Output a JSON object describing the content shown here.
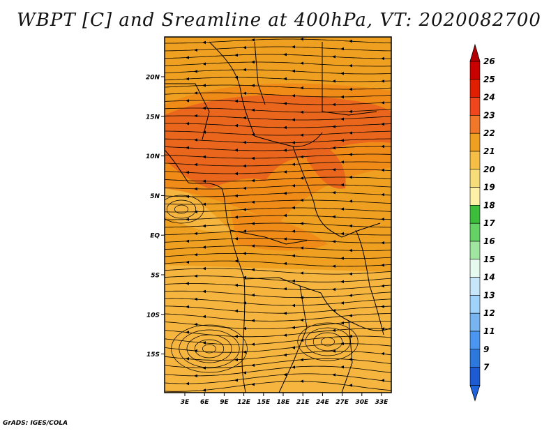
{
  "title": "WBPT [C] and Sreamline at 400hPa, VT: 2020082700",
  "footer": "GrADS: IGES/COLA",
  "map": {
    "x_labels": [
      "3E",
      "6E",
      "9E",
      "12E",
      "15E",
      "18E",
      "21E",
      "24E",
      "27E",
      "30E",
      "33E"
    ],
    "y_labels": [
      "20N",
      "15N",
      "10N",
      "5N",
      "EQ",
      "5S",
      "10S",
      "15S"
    ],
    "colors": {
      "t20": "#f5b640",
      "t21": "#f0a020",
      "t22": "#f08a18",
      "t23": "#e8641c",
      "line": "#000000"
    }
  },
  "colorbar": {
    "labels": [
      "26",
      "25",
      "24",
      "23",
      "22",
      "21",
      "20",
      "19",
      "18",
      "17",
      "16",
      "15",
      "14",
      "13",
      "12",
      "11",
      "9",
      "7"
    ],
    "colors": [
      "#c80000",
      "#e01e00",
      "#f0461e",
      "#f07828",
      "#f0a020",
      "#f5be46",
      "#f7dc7a",
      "#fff0a8",
      "#3cbe3c",
      "#64d264",
      "#a0e6a0",
      "#e6faf0",
      "#c8e6fa",
      "#a0d2fa",
      "#78b4f0",
      "#4b96f0",
      "#2d78dc",
      "#1e5ad2"
    ],
    "top_arrow_color": "#b40000",
    "bottom_arrow_color": "#1e64dc"
  }
}
